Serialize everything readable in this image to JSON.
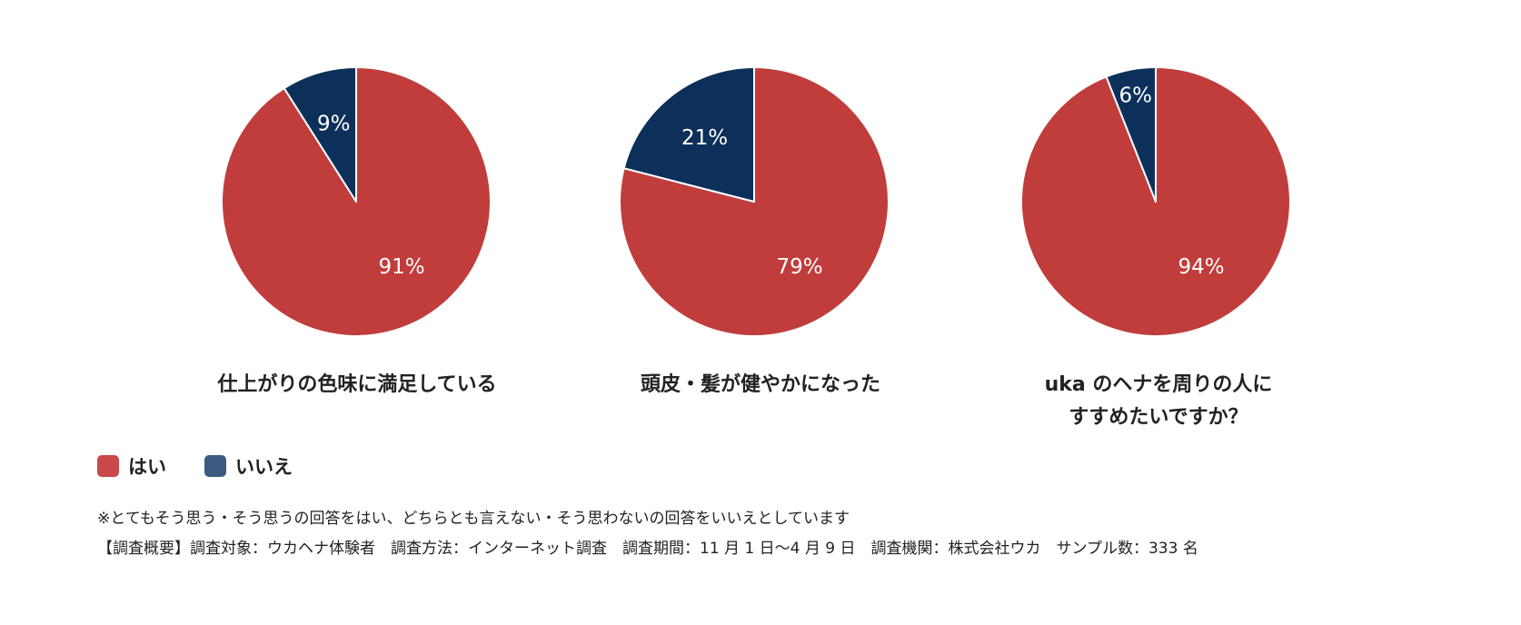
{
  "colors": {
    "yes": "#c03d3b",
    "no": "#0d305a",
    "legend_yes": "#c9484a",
    "legend_no": "#3d5a80",
    "slice_border": "#ffffff",
    "label_text": "#ffffff"
  },
  "legend": {
    "yes_label": "はい",
    "no_label": "いいえ"
  },
  "chart_data": [
    {
      "type": "pie",
      "title_lines": [
        "仕上がりの色味に満足している"
      ],
      "labels": [
        "はい",
        "いいえ"
      ],
      "values": [
        91,
        9
      ],
      "value_labels": [
        "91%",
        "9%"
      ]
    },
    {
      "type": "pie",
      "title_lines": [
        "頭皮・髪が健やかになった"
      ],
      "labels": [
        "はい",
        "いいえ"
      ],
      "values": [
        79,
        21
      ],
      "value_labels": [
        "79%",
        "21%"
      ]
    },
    {
      "type": "pie",
      "title_lines": [
        "uka のヘナを周りの人に",
        "すすめたいですか？"
      ],
      "labels": [
        "はい",
        "いいえ"
      ],
      "values": [
        94,
        6
      ],
      "value_labels": [
        "94%",
        "6%"
      ]
    }
  ],
  "footnote": "※とてもそう思う・そう思うの回答をはい、どちらとも言えない・そう思わないの回答をいいえとしています",
  "survey_summary": "【調査概要】調査対象：ウカヘナ体験者　調査方法：インターネット調査　調査期間：11 月 1 日〜4 月 9 日　調査機関：株式会社ウカ　サンプル数：333 名"
}
